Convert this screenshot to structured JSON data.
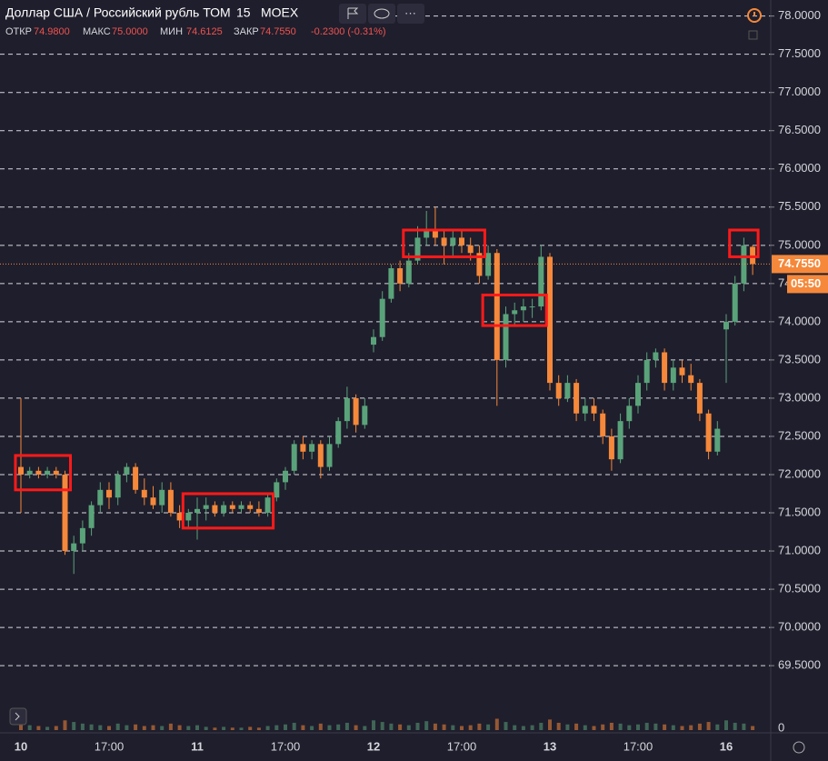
{
  "header": {
    "title": "Доллар США / Российский рубль ТОМ",
    "interval": "15",
    "exchange": "MOEX",
    "open_label": "ОТКР",
    "open": "74.9800",
    "high_label": "МАКС",
    "high": "75.0000",
    "low_label": "МИН",
    "low": "74.6125",
    "close_label": "ЗАКР",
    "close": "74.7550",
    "change": "-0.2300 (-0.31%)",
    "countdown": "05:50"
  },
  "chart_data": {
    "type": "candlestick",
    "categories": [
      "10",
      null,
      null,
      null,
      null,
      null,
      null,
      null,
      null,
      null,
      "17:00",
      null,
      null,
      null,
      null,
      null,
      null,
      null,
      null,
      null,
      "11",
      null,
      null,
      null,
      null,
      null,
      null,
      null,
      null,
      null,
      "17:00",
      null,
      null,
      null,
      null,
      null,
      null,
      null,
      null,
      null,
      "12",
      null,
      null,
      null,
      null,
      null,
      null,
      null,
      null,
      null,
      "17:00",
      null,
      null,
      null,
      null,
      null,
      null,
      null,
      null,
      null,
      "13",
      null,
      null,
      null,
      null,
      null,
      null,
      null,
      null,
      null,
      "17:00",
      null,
      null,
      null,
      null,
      null,
      null,
      null,
      null,
      null,
      "16",
      null,
      null,
      null
    ],
    "ohlc": [
      [
        72.1,
        73.0,
        71.5,
        72.0
      ],
      [
        72.0,
        72.1,
        71.95,
        72.05
      ],
      [
        72.05,
        72.1,
        71.95,
        72.0
      ],
      [
        72.0,
        72.1,
        71.95,
        72.05
      ],
      [
        72.05,
        72.1,
        71.95,
        72.0
      ],
      [
        72.0,
        72.05,
        70.95,
        71.0
      ],
      [
        71.0,
        71.2,
        70.7,
        71.1
      ],
      [
        71.1,
        71.4,
        71.0,
        71.3
      ],
      [
        71.3,
        71.65,
        71.2,
        71.6
      ],
      [
        71.6,
        71.9,
        71.5,
        71.8
      ],
      [
        71.8,
        71.9,
        71.55,
        71.7
      ],
      [
        71.7,
        72.05,
        71.6,
        72.0
      ],
      [
        72.0,
        72.15,
        71.9,
        72.1
      ],
      [
        72.1,
        72.15,
        71.75,
        71.8
      ],
      [
        71.8,
        71.95,
        71.6,
        71.7
      ],
      [
        71.7,
        71.85,
        71.55,
        71.6
      ],
      [
        71.6,
        71.9,
        71.5,
        71.8
      ],
      [
        71.8,
        71.9,
        71.45,
        71.5
      ],
      [
        71.5,
        71.6,
        71.3,
        71.4
      ],
      [
        71.4,
        71.55,
        71.3,
        71.5
      ],
      [
        71.5,
        71.7,
        71.15,
        71.55
      ],
      [
        71.55,
        71.7,
        71.4,
        71.6
      ],
      [
        71.6,
        71.65,
        71.45,
        71.5
      ],
      [
        71.5,
        71.65,
        71.45,
        71.6
      ],
      [
        71.6,
        71.65,
        71.5,
        71.55
      ],
      [
        71.55,
        71.65,
        71.5,
        71.6
      ],
      [
        71.6,
        71.65,
        71.5,
        71.55
      ],
      [
        71.55,
        71.65,
        71.45,
        71.5
      ],
      [
        71.5,
        71.75,
        71.45,
        71.7
      ],
      [
        71.7,
        71.95,
        71.65,
        71.9
      ],
      [
        71.9,
        72.1,
        71.8,
        72.05
      ],
      [
        72.05,
        72.45,
        72.0,
        72.4
      ],
      [
        72.4,
        72.5,
        72.2,
        72.3
      ],
      [
        72.3,
        72.45,
        72.2,
        72.4
      ],
      [
        72.4,
        72.45,
        71.95,
        72.1
      ],
      [
        72.1,
        72.5,
        72.05,
        72.4
      ],
      [
        72.4,
        72.75,
        72.35,
        72.7
      ],
      [
        72.7,
        73.15,
        72.6,
        73.0
      ],
      [
        73.0,
        73.05,
        72.55,
        72.65
      ],
      [
        72.65,
        73.0,
        72.6,
        72.9
      ],
      [
        73.7,
        73.9,
        73.6,
        73.8
      ],
      [
        73.8,
        74.4,
        73.75,
        74.3
      ],
      [
        74.3,
        74.75,
        74.25,
        74.7
      ],
      [
        74.7,
        74.8,
        74.4,
        74.5
      ],
      [
        74.5,
        74.9,
        74.45,
        74.8
      ],
      [
        74.8,
        75.25,
        74.75,
        75.1
      ],
      [
        75.1,
        75.45,
        75.0,
        75.2
      ],
      [
        75.2,
        75.5,
        75.0,
        75.1
      ],
      [
        75.1,
        75.2,
        74.75,
        75.0
      ],
      [
        75.0,
        75.2,
        74.85,
        75.1
      ],
      [
        75.1,
        75.2,
        74.9,
        75.0
      ],
      [
        75.0,
        75.1,
        74.8,
        74.9
      ],
      [
        74.9,
        75.0,
        74.5,
        74.6
      ],
      [
        74.6,
        75.0,
        74.55,
        74.9
      ],
      [
        74.9,
        74.95,
        72.9,
        73.5
      ],
      [
        73.5,
        74.2,
        73.4,
        74.1
      ],
      [
        74.1,
        74.25,
        73.95,
        74.15
      ],
      [
        74.15,
        74.3,
        74.0,
        74.2
      ],
      [
        74.2,
        74.3,
        74.05,
        74.2
      ],
      [
        74.2,
        75.0,
        74.15,
        74.85
      ],
      [
        74.85,
        74.9,
        73.1,
        73.2
      ],
      [
        73.2,
        73.3,
        72.9,
        73.0
      ],
      [
        73.0,
        73.3,
        72.95,
        73.2
      ],
      [
        73.2,
        73.25,
        72.7,
        72.8
      ],
      [
        72.8,
        73.0,
        72.7,
        72.9
      ],
      [
        72.9,
        73.0,
        72.7,
        72.8
      ],
      [
        72.8,
        72.85,
        72.4,
        72.5
      ],
      [
        72.5,
        72.6,
        72.05,
        72.2
      ],
      [
        72.2,
        72.8,
        72.15,
        72.7
      ],
      [
        72.7,
        73.0,
        72.6,
        72.9
      ],
      [
        72.9,
        73.3,
        72.8,
        73.2
      ],
      [
        73.2,
        73.6,
        73.1,
        73.5
      ],
      [
        73.5,
        73.65,
        73.4,
        73.6
      ],
      [
        73.6,
        73.65,
        73.1,
        73.2
      ],
      [
        73.2,
        73.5,
        73.1,
        73.4
      ],
      [
        73.4,
        73.5,
        73.2,
        73.3
      ],
      [
        73.3,
        73.45,
        73.1,
        73.2
      ],
      [
        73.2,
        73.25,
        72.7,
        72.8
      ],
      [
        72.8,
        72.85,
        72.2,
        72.3
      ],
      [
        72.3,
        72.7,
        72.25,
        72.6
      ],
      [
        73.9,
        74.1,
        73.2,
        74.0
      ],
      [
        74.0,
        74.6,
        73.95,
        74.5
      ],
      [
        74.5,
        75.1,
        74.4,
        75.0
      ],
      [
        74.98,
        75.0,
        74.6125,
        74.755
      ]
    ],
    "volume": [
      14,
      6,
      5,
      4,
      5,
      12,
      10,
      8,
      7,
      6,
      5,
      8,
      6,
      7,
      5,
      6,
      5,
      8,
      6,
      5,
      6,
      4,
      3,
      4,
      3,
      3,
      4,
      3,
      5,
      6,
      7,
      9,
      6,
      5,
      8,
      6,
      7,
      9,
      6,
      5,
      12,
      10,
      8,
      7,
      6,
      9,
      11,
      8,
      7,
      6,
      5,
      6,
      8,
      7,
      14,
      10,
      6,
      5,
      6,
      9,
      13,
      9,
      7,
      8,
      6,
      5,
      7,
      9,
      8,
      6,
      7,
      9,
      8,
      7,
      6,
      5,
      6,
      8,
      10,
      7,
      12,
      9,
      8,
      5
    ],
    "volume_ylim": [
      0,
      28
    ],
    "volume_yticks": [
      0
    ],
    "ylim": [
      68.99,
      78.21
    ],
    "yticks": [
      {
        "value": 69.5,
        "label": "69.5000"
      },
      {
        "value": 70,
        "label": "70.0000"
      },
      {
        "value": 70.5,
        "label": "70.5000"
      },
      {
        "value": 71,
        "label": "71.0000"
      },
      {
        "value": 71.5,
        "label": "71.5000"
      },
      {
        "value": 72,
        "label": "72.0000"
      },
      {
        "value": 72.5,
        "label": "72.5000"
      },
      {
        "value": 73,
        "label": "73.0000"
      },
      {
        "value": 73.5,
        "label": "73.5000"
      },
      {
        "value": 74,
        "label": "74.0000"
      },
      {
        "value": 74.5,
        "label": "74.5000"
      },
      {
        "value": 75,
        "label": "75.0000"
      },
      {
        "value": 75.5,
        "label": "75.5000"
      },
      {
        "value": 76,
        "label": "76.0000"
      },
      {
        "value": 76.5,
        "label": "76.5000"
      },
      {
        "value": 77,
        "label": "77.0000"
      },
      {
        "value": 77.5,
        "label": "77.5000"
      },
      {
        "value": 78,
        "label": "78.0000"
      }
    ],
    "last_price": {
      "value": 74.755,
      "label": "74.7550"
    },
    "grid": true,
    "up_color": "#5aa37a",
    "down_color": "#f5883a",
    "highlight_color": "#ff1a1a",
    "highlights": [
      {
        "from": 0,
        "to": 5,
        "range": [
          71.8,
          72.25
        ]
      },
      {
        "from": 19,
        "to": 28,
        "range": [
          71.3,
          71.75
        ]
      },
      {
        "from": 44,
        "to": 52,
        "range": [
          74.85,
          75.2
        ]
      },
      {
        "from": 53,
        "to": 59,
        "range": [
          73.95,
          74.35
        ]
      },
      {
        "from": 81,
        "to": 83,
        "range": [
          74.85,
          75.2
        ]
      }
    ]
  }
}
